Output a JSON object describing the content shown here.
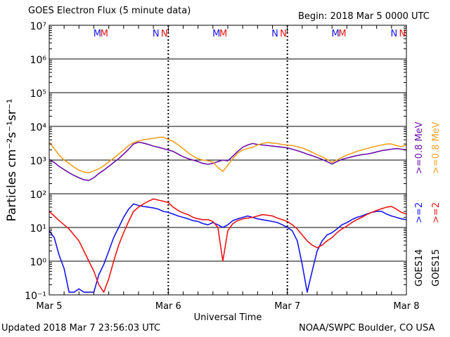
{
  "header": {
    "title": "GOES Electron Flux (5 minute data)",
    "begin": "Begin: 2018 Mar 5 0000 UTC"
  },
  "footer": {
    "updated": "Updated 2018 Mar  7 23:56:03 UTC",
    "credit": "NOAA/SWPC Boulder, CO USA"
  },
  "chart_data": {
    "type": "line",
    "title": "GOES Electron Flux (5 minute data)",
    "xlabel": "Universal Time",
    "ylabel": "Particles cm⁻²s⁻¹sr⁻¹",
    "yscale": "log",
    "ylim": [
      0.1,
      10000000
    ],
    "xlim": [
      0,
      72
    ],
    "x_unit": "hours since 2018 Mar 5 0000 UTC",
    "x_ticks": [
      {
        "x": 0,
        "label": "Mar 5"
      },
      {
        "x": 24,
        "label": "Mar 6"
      },
      {
        "x": 48,
        "label": "Mar 7"
      },
      {
        "x": 72,
        "label": "Mar 8"
      }
    ],
    "y_ticks": [
      {
        "exp": -1,
        "label": "10⁻¹"
      },
      {
        "exp": 0,
        "label": "10⁰"
      },
      {
        "exp": 1,
        "label": "10¹"
      },
      {
        "exp": 2,
        "label": "10²"
      },
      {
        "exp": 3,
        "label": "10³"
      },
      {
        "exp": 4,
        "label": "10⁴"
      },
      {
        "exp": 5,
        "label": "10⁵"
      },
      {
        "exp": 6,
        "label": "10⁶"
      },
      {
        "exp": 7,
        "label": "10⁷"
      }
    ],
    "threshold_line": 1000,
    "grid": true,
    "markers": [
      {
        "x": 9.7,
        "text": "M",
        "color": "#1515ee"
      },
      {
        "x": 11.1,
        "text": "M",
        "color": "#ee1515"
      },
      {
        "x": 21.5,
        "text": "N",
        "color": "#1515ee"
      },
      {
        "x": 23.2,
        "text": "N",
        "color": "#ee1515"
      },
      {
        "x": 33.7,
        "text": "M",
        "color": "#1515ee"
      },
      {
        "x": 35.1,
        "text": "M",
        "color": "#ee1515"
      },
      {
        "x": 45.5,
        "text": "N",
        "color": "#1515ee"
      },
      {
        "x": 47.2,
        "text": "N",
        "color": "#ee1515"
      },
      {
        "x": 57.7,
        "text": "M",
        "color": "#1515ee"
      },
      {
        "x": 59.1,
        "text": "M",
        "color": "#ee1515"
      },
      {
        "x": 69.5,
        "text": "N",
        "color": "#1515ee"
      },
      {
        "x": 71.2,
        "text": "N",
        "color": "#ee1515"
      }
    ],
    "legend": [
      {
        "label": "GOES14",
        "color": "#000000"
      },
      {
        "label": ">=2",
        "color": "#1515ee"
      },
      {
        "label": ">=0.8  MeV",
        "color": "#6a0fa8"
      },
      {
        "label": "GOES15",
        "color": "#000000"
      },
      {
        "label": ">=2",
        "color": "#ee1515"
      },
      {
        "label": ">=0.8  MeV",
        "color": "#f0a020"
      }
    ],
    "series": [
      {
        "name": "GOES14 >=0.8 MeV",
        "color": "#6a0fa8",
        "x": [
          0,
          1,
          2,
          3,
          4,
          5,
          6,
          7,
          8,
          9,
          10,
          11,
          12,
          13,
          14,
          15,
          16,
          17,
          18,
          19,
          20,
          21,
          22,
          23,
          24,
          25,
          26,
          27,
          28,
          29,
          30,
          31,
          32,
          33,
          34,
          35,
          36,
          37,
          38,
          39,
          40,
          41,
          42,
          43,
          44,
          45,
          46,
          47,
          48,
          49,
          50,
          51,
          52,
          53,
          54,
          55,
          56,
          57,
          58,
          59,
          60,
          61,
          62,
          63,
          64,
          65,
          66,
          67,
          68,
          69,
          70,
          71,
          72
        ],
        "y": [
          1050,
          850,
          650,
          520,
          420,
          350,
          300,
          260,
          250,
          300,
          400,
          500,
          650,
          850,
          1100,
          1500,
          2100,
          3000,
          3400,
          3200,
          2900,
          2600,
          2400,
          2200,
          2000,
          1800,
          1500,
          1250,
          1100,
          1000,
          900,
          800,
          750,
          800,
          900,
          1000,
          950,
          1300,
          1800,
          2400,
          2800,
          3100,
          2900,
          2800,
          2700,
          2600,
          2500,
          2400,
          2300,
          2100,
          1900,
          1700,
          1500,
          1350,
          1200,
          1050,
          900,
          760,
          900,
          1050,
          1150,
          1250,
          1350,
          1450,
          1500,
          1600,
          1750,
          1900,
          2000,
          2100,
          2200,
          2100,
          2000
        ]
      },
      {
        "name": "GOES15 >=0.8 MeV",
        "color": "#f0a020",
        "x": [
          0,
          1,
          2,
          3,
          4,
          5,
          6,
          7,
          8,
          9,
          10,
          11,
          12,
          13,
          14,
          15,
          16,
          17,
          18,
          19,
          20,
          21,
          22,
          23,
          24,
          25,
          26,
          27,
          28,
          29,
          30,
          31,
          32,
          33,
          34,
          35,
          36,
          37,
          38,
          39,
          40,
          41,
          42,
          43,
          44,
          45,
          46,
          47,
          48,
          49,
          50,
          51,
          52,
          53,
          54,
          55,
          56,
          57,
          58,
          59,
          60,
          61,
          62,
          63,
          64,
          65,
          66,
          67,
          68,
          69,
          70,
          71,
          72
        ],
        "y": [
          3400,
          2200,
          1400,
          1000,
          800,
          620,
          500,
          440,
          420,
          480,
          550,
          680,
          880,
          1150,
          1500,
          2000,
          2700,
          3300,
          3700,
          4000,
          4200,
          4400,
          4700,
          4800,
          4100,
          3600,
          2800,
          2200,
          1650,
          1300,
          1100,
          1000,
          950,
          880,
          600,
          460,
          700,
          1100,
          1600,
          2000,
          2200,
          2400,
          2800,
          3100,
          3300,
          3200,
          3100,
          2900,
          2800,
          2700,
          2500,
          2300,
          2000,
          1700,
          1450,
          1250,
          1050,
          850,
          1000,
          1200,
          1400,
          1600,
          1800,
          2000,
          2200,
          2400,
          2600,
          2800,
          3000,
          3000,
          2700,
          2500,
          2800
        ]
      },
      {
        "name": "GOES14 >=2 MeV",
        "color": "#1515ee",
        "x": [
          0,
          1,
          2,
          3,
          4,
          5,
          6,
          7,
          8,
          9,
          10,
          11,
          12,
          13,
          14,
          15,
          16,
          17,
          18,
          19,
          20,
          21,
          22,
          23,
          24,
          25,
          26,
          27,
          28,
          29,
          30,
          31,
          32,
          33,
          34,
          35,
          36,
          37,
          38,
          39,
          40,
          41,
          42,
          43,
          44,
          45,
          46,
          47,
          48,
          49,
          50,
          51,
          52,
          53,
          54,
          55,
          56,
          57,
          58,
          59,
          60,
          61,
          62,
          63,
          64,
          65,
          66,
          67,
          68,
          69,
          70,
          71,
          72
        ],
        "y": [
          8,
          5,
          1.5,
          0.6,
          0.12,
          0.12,
          0.15,
          0.12,
          0.12,
          0.12,
          0.4,
          0.8,
          2,
          5,
          10,
          20,
          35,
          50,
          45,
          42,
          40,
          38,
          35,
          30,
          28,
          25,
          22,
          20,
          18,
          16,
          15,
          13,
          12,
          14,
          12,
          10,
          12,
          16,
          18,
          20,
          22,
          20,
          18,
          17,
          16,
          15,
          14,
          12,
          10,
          8,
          4,
          0.8,
          0.12,
          0.5,
          2,
          4,
          6,
          7,
          9,
          12,
          14,
          17,
          20,
          22,
          25,
          28,
          30,
          30,
          25,
          22,
          20,
          18,
          17
        ]
      },
      {
        "name": "GOES15 >=2 MeV",
        "color": "#ee1515",
        "x": [
          0,
          1,
          2,
          3,
          4,
          5,
          6,
          7,
          8,
          9,
          10,
          11,
          12,
          13,
          14,
          15,
          16,
          17,
          18,
          19,
          20,
          21,
          22,
          23,
          24,
          25,
          26,
          27,
          28,
          29,
          30,
          31,
          32,
          33,
          34,
          35,
          36,
          37,
          38,
          39,
          40,
          41,
          42,
          43,
          44,
          45,
          46,
          47,
          48,
          49,
          50,
          51,
          52,
          53,
          54,
          55,
          56,
          57,
          58,
          59,
          60,
          61,
          62,
          63,
          64,
          65,
          66,
          67,
          68,
          69,
          70,
          71,
          72
        ],
        "y": [
          30,
          22,
          16,
          12,
          9,
          6,
          4,
          2,
          1,
          0.5,
          0.2,
          0.12,
          0.3,
          1,
          3,
          7,
          15,
          30,
          40,
          50,
          60,
          70,
          65,
          60,
          55,
          40,
          32,
          27,
          24,
          20,
          18,
          17,
          17,
          15,
          10,
          1,
          8,
          13,
          16,
          18,
          19,
          20,
          22,
          24,
          23,
          22,
          19,
          17,
          15,
          12,
          9,
          6,
          4,
          3,
          2.5,
          3,
          4,
          5,
          7,
          9,
          11,
          14,
          17,
          20,
          24,
          28,
          32,
          36,
          40,
          42,
          35,
          28,
          25
        ]
      }
    ]
  }
}
